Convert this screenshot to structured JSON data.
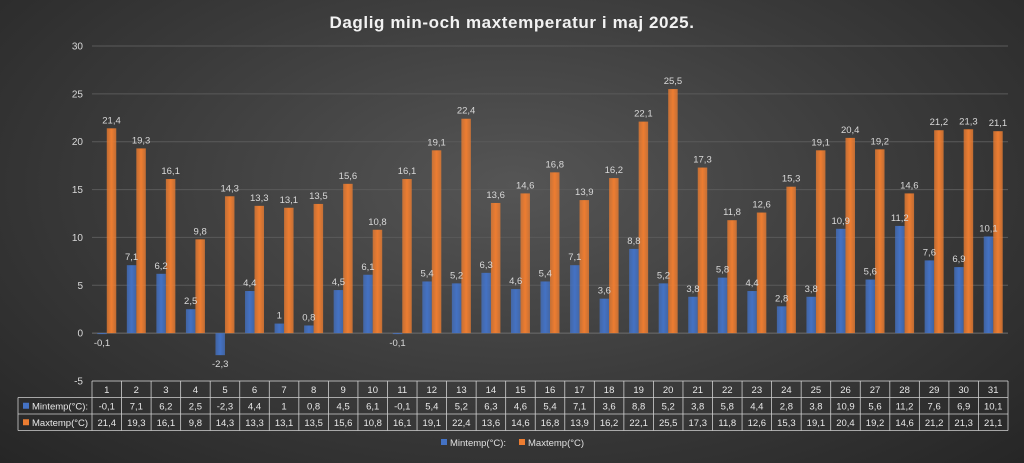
{
  "chart_data": {
    "type": "bar",
    "title": "Daglig min-och maxtemperatur i maj 2025.",
    "categories": [
      "1",
      "2",
      "3",
      "4",
      "5",
      "6",
      "7",
      "8",
      "9",
      "10",
      "11",
      "12",
      "13",
      "14",
      "15",
      "16",
      "17",
      "18",
      "19",
      "20",
      "21",
      "22",
      "23",
      "24",
      "25",
      "26",
      "27",
      "28",
      "29",
      "30",
      "31"
    ],
    "series": [
      {
        "name": "Mintemp(°C):",
        "color": "#4472c4",
        "values": [
          -0.1,
          7.1,
          6.2,
          2.5,
          -2.3,
          4.4,
          1,
          0.8,
          4.5,
          6.1,
          -0.1,
          5.4,
          5.2,
          6.3,
          4.6,
          5.4,
          7.1,
          3.6,
          8.8,
          5.2,
          3.8,
          5.8,
          4.4,
          2.8,
          3.8,
          10.9,
          5.6,
          11.2,
          7.6,
          6.9,
          10.1
        ],
        "labels": [
          "-0,1",
          "7,1",
          "6,2",
          "2,5",
          "-2,3",
          "4,4",
          "1",
          "0,8",
          "4,5",
          "6,1",
          "-0,1",
          "5,4",
          "5,2",
          "6,3",
          "4,6",
          "5,4",
          "7,1",
          "3,6",
          "8,8",
          "5,2",
          "3,8",
          "5,8",
          "4,4",
          "2,8",
          "3,8",
          "10,9",
          "5,6",
          "11,2",
          "7,6",
          "6,9",
          "10,1"
        ]
      },
      {
        "name": "Maxtemp(°C)",
        "color": "#ed7d31",
        "values": [
          21.4,
          19.3,
          16.1,
          9.8,
          14.3,
          13.3,
          13.1,
          13.5,
          15.6,
          10.8,
          16.1,
          19.1,
          22.4,
          13.6,
          14.6,
          16.8,
          13.9,
          16.2,
          22.1,
          25.5,
          17.3,
          11.8,
          12.6,
          15.3,
          19.1,
          20.4,
          19.2,
          14.6,
          21.2,
          21.3,
          21.1
        ],
        "labels": [
          "21,4",
          "19,3",
          "16,1",
          "9,8",
          "14,3",
          "13,3",
          "13,1",
          "13,5",
          "15,6",
          "10,8",
          "16,1",
          "19,1",
          "22,4",
          "13,6",
          "14,6",
          "16,8",
          "13,9",
          "16,2",
          "22,1",
          "25,5",
          "17,3",
          "11,8",
          "12,6",
          "15,3",
          "19,1",
          "20,4",
          "19,2",
          "14,6",
          "21,2",
          "21,3",
          "21,1"
        ]
      }
    ],
    "ylim": [
      -5,
      30
    ],
    "yticks": [
      -5,
      0,
      5,
      10,
      15,
      20,
      25,
      30
    ],
    "grid": true,
    "legend": "bottom",
    "data_table": true
  }
}
